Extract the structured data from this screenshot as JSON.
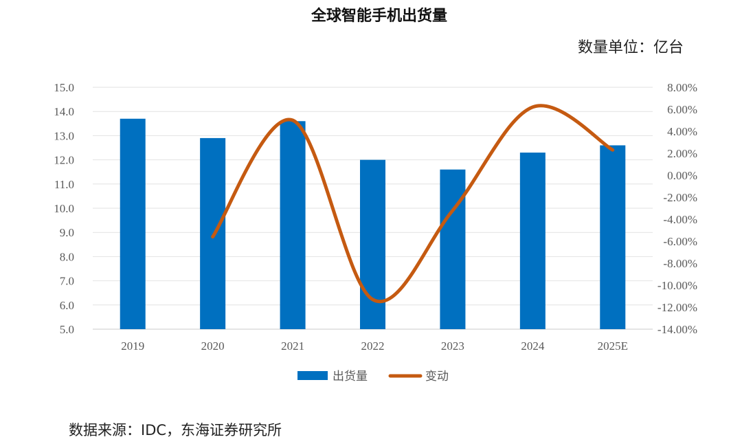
{
  "chart_data": {
    "type": "bar",
    "title": "全球智能手机出货量",
    "unit_label": "数量单位：亿台",
    "categories": [
      "2019",
      "2020",
      "2021",
      "2022",
      "2023",
      "2024",
      "2025E"
    ],
    "series": [
      {
        "name": "出货量",
        "type": "bar",
        "axis": "left",
        "color": "#0070C0",
        "values": [
          13.7,
          12.9,
          13.6,
          12.0,
          11.6,
          12.3,
          12.6
        ]
      },
      {
        "name": "变动",
        "type": "line",
        "axis": "right",
        "color": "#C55A11",
        "values": [
          null,
          -5.6,
          5.0,
          -11.3,
          -3.2,
          6.2,
          2.3
        ]
      }
    ],
    "y_left": {
      "ylim": [
        5,
        15
      ],
      "ticks": [
        "15.0",
        "14.0",
        "13.0",
        "12.0",
        "11.0",
        "10.0",
        "9.0",
        "8.0",
        "7.0",
        "6.0",
        "5.0"
      ]
    },
    "y_right": {
      "ylim": [
        -14,
        8
      ],
      "ticks": [
        "8.00%",
        "6.00%",
        "4.00%",
        "2.00%",
        "0.00%",
        "-2.00%",
        "-4.00%",
        "-6.00%",
        "-8.00%",
        "-10.00%",
        "-12.00%",
        "-14.00%"
      ]
    },
    "grid": true,
    "legend": "bottom",
    "source": "数据来源：IDC，东海证券研究所"
  }
}
